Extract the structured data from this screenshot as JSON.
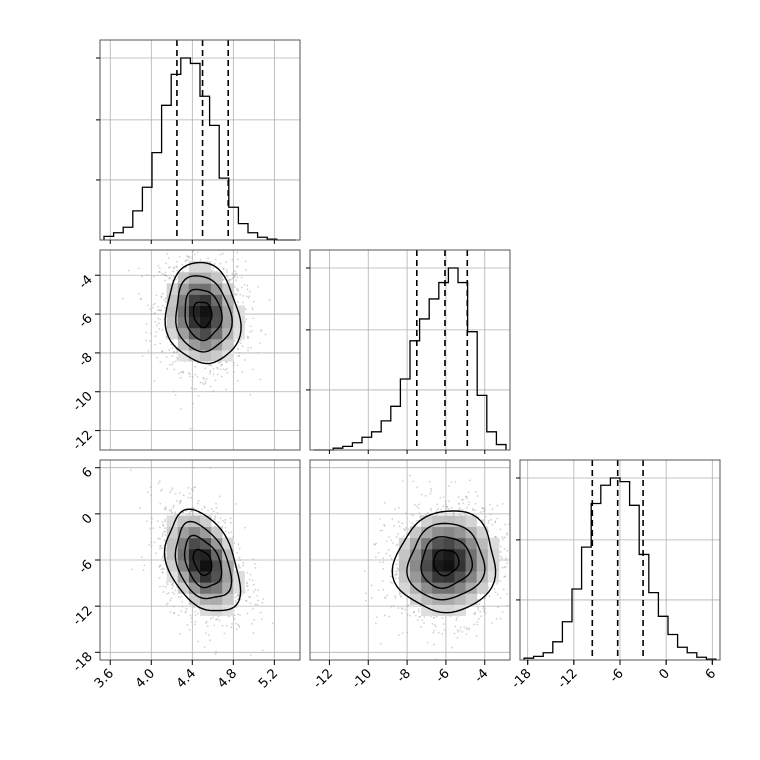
{
  "chart_data": {
    "type": "corner",
    "colors": {
      "hist": "#000000",
      "grid": "#b0b0b0",
      "scatter": "#a6a6a6",
      "density": "#000000"
    },
    "params": [
      {
        "id": "p0",
        "range": [
          3.5,
          5.45
        ],
        "ticks": [
          "3.6",
          "4.0",
          "4.4",
          "4.8",
          "5.2"
        ],
        "tick_values": [
          3.6,
          4.0,
          4.4,
          4.8,
          5.2
        ],
        "quantiles": [
          4.25,
          4.5,
          4.75
        ]
      },
      {
        "id": "p1",
        "range": [
          -13.0,
          -2.7
        ],
        "ticks": [
          "-12",
          "-10",
          "-8",
          "-6",
          "-4"
        ],
        "tick_values": [
          -12,
          -10,
          -8,
          -6,
          -4
        ],
        "quantiles": [
          -7.5,
          -6.05,
          -4.9
        ]
      },
      {
        "id": "p2",
        "range": [
          -19.0,
          7.0
        ],
        "ticks": [
          "-18",
          "-12",
          "-6",
          "0",
          "6"
        ],
        "tick_values": [
          -18,
          -12,
          -6,
          0,
          6
        ],
        "quantiles": [
          -9.6,
          -6.3,
          -3.0
        ]
      }
    ],
    "histograms": [
      {
        "param": 0,
        "counts": [
          0.02,
          0.04,
          0.07,
          0.16,
          0.29,
          0.48,
          0.74,
          0.91,
          1.0,
          0.97,
          0.79,
          0.63,
          0.34,
          0.18,
          0.09,
          0.04,
          0.015,
          0.005,
          0.0,
          0.0
        ]
      },
      {
        "param": 1,
        "counts": [
          0.0,
          0.0,
          0.01,
          0.02,
          0.04,
          0.07,
          0.1,
          0.16,
          0.24,
          0.39,
          0.6,
          0.72,
          0.83,
          0.92,
          1.0,
          0.92,
          0.65,
          0.3,
          0.1,
          0.03
        ]
      },
      {
        "param": 2,
        "counts": [
          0.01,
          0.02,
          0.04,
          0.1,
          0.21,
          0.39,
          0.62,
          0.86,
          0.96,
          1.0,
          0.98,
          0.85,
          0.58,
          0.37,
          0.24,
          0.14,
          0.07,
          0.04,
          0.015,
          0.005
        ]
      }
    ],
    "pairs": [
      {
        "x": 0,
        "y": 1,
        "center": [
          4.5,
          -6.0
        ],
        "sigma": [
          0.18,
          1.3
        ],
        "rho": -0.1
      },
      {
        "x": 0,
        "y": 2,
        "center": [
          4.5,
          -6.3
        ],
        "sigma": [
          0.18,
          3.3
        ],
        "rho": -0.35
      },
      {
        "x": 1,
        "y": 2,
        "center": [
          -6.0,
          -6.3
        ],
        "sigma": [
          1.3,
          3.3
        ],
        "rho": 0.05
      }
    ]
  }
}
